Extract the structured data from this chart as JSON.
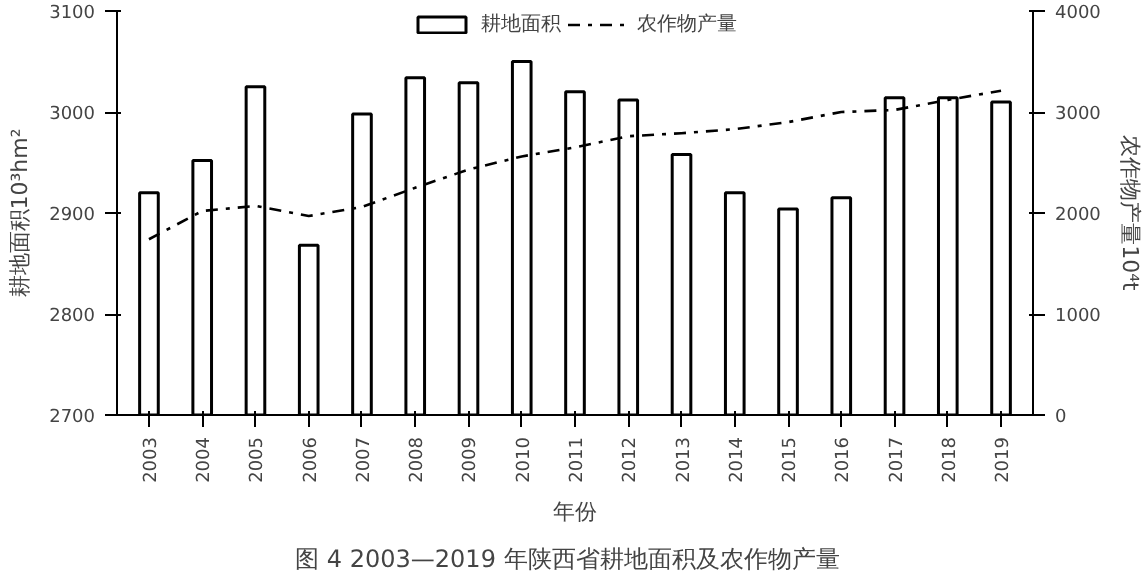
{
  "chart_data": {
    "type": "bar",
    "categories": [
      "2003",
      "2004",
      "2005",
      "2006",
      "2007",
      "2008",
      "2009",
      "2010",
      "2011",
      "2012",
      "2013",
      "2014",
      "2015",
      "2016",
      "2017",
      "2018",
      "2019"
    ],
    "series": [
      {
        "name": "耕地面积",
        "color": "#ffffff",
        "values": [
          2920,
          2952,
          3025,
          2868,
          2998,
          3034,
          3029,
          3050,
          3020,
          3012,
          2958,
          2920,
          2904,
          2915,
          3014,
          3014,
          3010
        ]
      },
      {
        "name": "农作物产量",
        "type": "line",
        "axis": "y2",
        "color": "#000000",
        "line_style": "dashed",
        "values": [
          1740,
          2020,
          2070,
          1970,
          2060,
          2250,
          2430,
          2560,
          2650,
          2760,
          2790,
          2830,
          2900,
          3000,
          3020,
          3120,
          3210
        ]
      }
    ],
    "ylim": [
      2700,
      3100
    ],
    "yticks": [
      2700,
      2800,
      2900,
      3000,
      3100
    ],
    "y2lim": [
      0,
      4000
    ],
    "y2ticks": [
      0,
      1000,
      2000,
      3000,
      4000
    ],
    "xlabel": "年份",
    "ylabel": "耕地面积10³hm²",
    "y2label": "农作物产量10⁴t",
    "annotations": [
      "图 4   2003—2019 年陕西省耕地面积及农作物产量"
    ],
    "legend": "top",
    "grid": false
  }
}
